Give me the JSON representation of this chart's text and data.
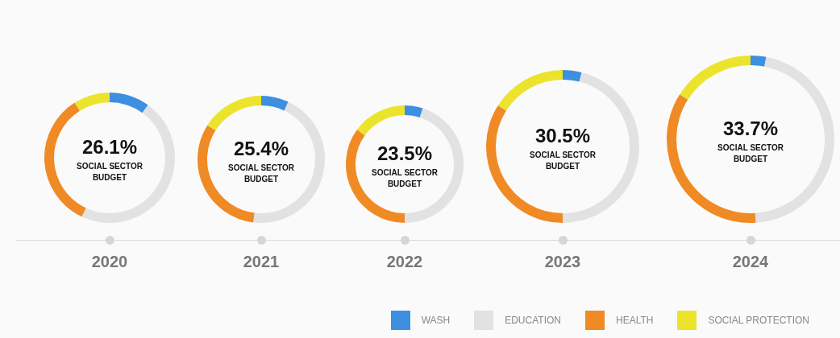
{
  "chart_data": [
    {
      "type": "donut",
      "title": "2020",
      "categories": [
        "WASH",
        "EDUCATION",
        "HEALTH",
        "SOCIAL PROTECTION"
      ],
      "values": [
        10,
        47,
        34,
        9
      ],
      "colors": [
        "#3d8fe0",
        "#e2e2e2",
        "#f08a24",
        "#ece42c"
      ],
      "annotations": [
        "26.1%",
        "SOCIAL SECTOR BUDGET"
      ],
      "legend": "bottom right"
    },
    {
      "type": "donut",
      "title": "2021",
      "categories": [
        null,
        null,
        null,
        null
      ],
      "values": [
        7,
        45,
        32,
        16
      ],
      "colors": [
        "#3d8fe0",
        "#e2e2e2",
        "#f08a24",
        "#ece42c"
      ],
      "annotations": [
        "25.4%",
        "SOCIAL SECTOR BUDGET"
      ]
    },
    {
      "type": "donut",
      "title": "2022",
      "categories": [
        null,
        null,
        null,
        null
      ],
      "values": [
        5,
        45,
        35,
        15
      ],
      "colors": [
        "#3d8fe0",
        "#e2e2e2",
        "#f08a24",
        "#ece42c"
      ],
      "annotations": [
        "23.5%",
        "SOCIAL SECTOR BUDGET"
      ]
    },
    {
      "type": "donut",
      "title": "2023",
      "categories": [
        null,
        null,
        null,
        null
      ],
      "values": [
        4,
        46,
        34,
        16
      ],
      "colors": [
        "#3d8fe0",
        "#e2e2e2",
        "#f08a24",
        "#ece42c"
      ],
      "annotations": [
        "30.5%",
        "SOCIAL SECTOR BUDGET"
      ]
    },
    {
      "type": "donut",
      "title": "2024",
      "categories": [
        null,
        null,
        null,
        null
      ],
      "values": [
        3,
        46,
        35,
        16
      ],
      "colors": [
        "#3d8fe0",
        "#e2e2e2",
        "#f08a24",
        "#ece42c"
      ],
      "annotations": [
        "33.7%",
        "SOCIAL SECTOR BUDGET"
      ]
    }
  ]
}
